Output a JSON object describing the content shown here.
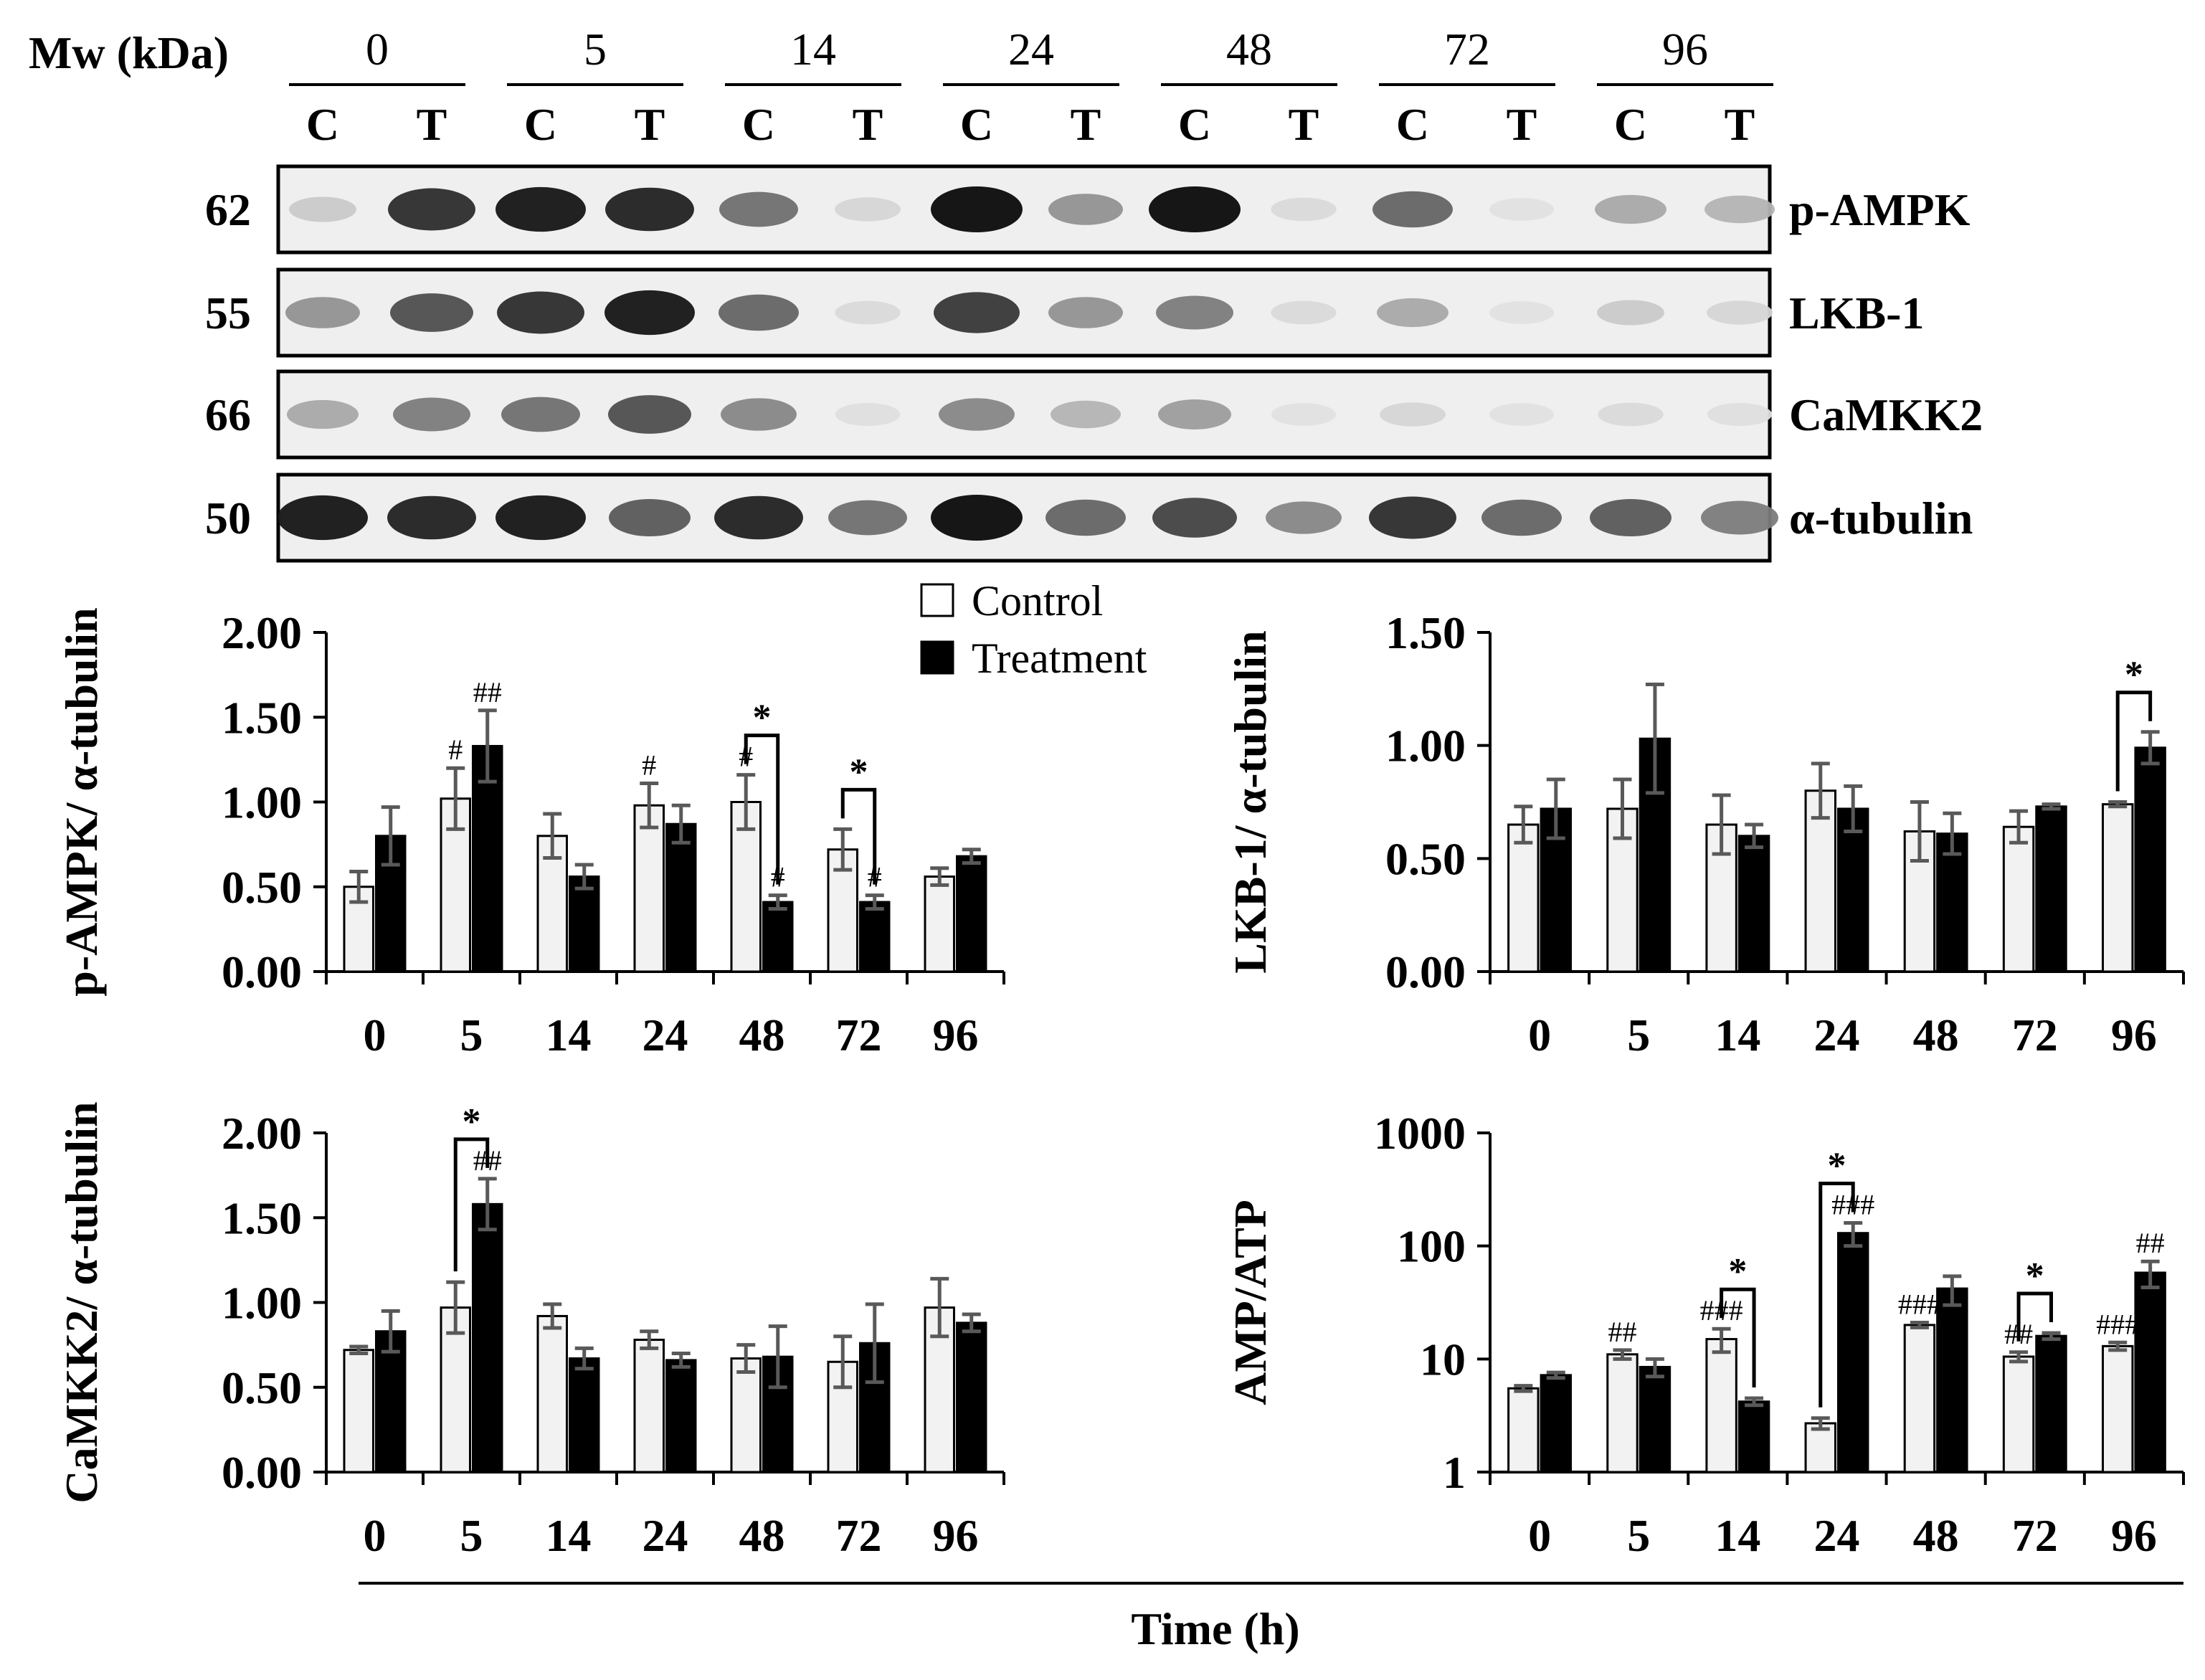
{
  "blot": {
    "mw_label": "Mw (kDa)",
    "time_points": [
      "0",
      "5",
      "14",
      "24",
      "48",
      "72",
      "96"
    ],
    "lane_labels": [
      "C",
      "T",
      "C",
      "T",
      "C",
      "T",
      "C",
      "T",
      "C",
      "T",
      "C",
      "T",
      "C",
      "T"
    ],
    "bands": [
      {
        "mw": "62",
        "name": "p-AMPK",
        "intensity": [
          0.15,
          0.85,
          0.95,
          0.9,
          0.55,
          0.1,
          1.0,
          0.4,
          1.0,
          0.08,
          0.6,
          0.05,
          0.3,
          0.25
        ]
      },
      {
        "mw": "55",
        "name": "LKB-1",
        "intensity": [
          0.4,
          0.7,
          0.85,
          0.95,
          0.6,
          0.08,
          0.8,
          0.4,
          0.5,
          0.08,
          0.3,
          0.05,
          0.15,
          0.1
        ]
      },
      {
        "mw": "66",
        "name": "CaMKK2",
        "intensity": [
          0.3,
          0.5,
          0.55,
          0.7,
          0.45,
          0.06,
          0.45,
          0.25,
          0.35,
          0.05,
          0.1,
          0.05,
          0.08,
          0.06
        ]
      },
      {
        "mw": "50",
        "name": "α-tubulin",
        "intensity": [
          0.95,
          0.9,
          0.95,
          0.65,
          0.9,
          0.55,
          1.0,
          0.6,
          0.75,
          0.45,
          0.85,
          0.6,
          0.65,
          0.5
        ]
      }
    ]
  },
  "legend": {
    "control": "Control",
    "treatment": "Treatment"
  },
  "shared_xlabel": "Time (h)",
  "chart_data": [
    {
      "type": "bar",
      "id": "pampk",
      "ylabel": "p-AMPK/ α-tubulin",
      "categories": [
        "0",
        "5",
        "14",
        "24",
        "48",
        "72",
        "96"
      ],
      "ylim": [
        0,
        2
      ],
      "yticks": [
        "0.00",
        "0.50",
        "1.00",
        "1.50",
        "2.00"
      ],
      "series": [
        {
          "name": "Control",
          "values": [
            0.5,
            1.02,
            0.8,
            0.98,
            1.0,
            0.72,
            0.56
          ],
          "errors": [
            0.09,
            0.18,
            0.13,
            0.13,
            0.16,
            0.12,
            0.05
          ],
          "marks": [
            "",
            "#",
            "",
            "#",
            "#",
            "",
            ""
          ]
        },
        {
          "name": "Treatment",
          "values": [
            0.8,
            1.33,
            0.56,
            0.87,
            0.41,
            0.41,
            0.68
          ],
          "errors": [
            0.17,
            0.21,
            0.07,
            0.11,
            0.04,
            0.04,
            0.04
          ],
          "marks": [
            "",
            "##",
            "",
            "",
            "#",
            "#",
            ""
          ]
        }
      ],
      "significance": [
        {
          "category": "48",
          "label": "*"
        },
        {
          "category": "72",
          "label": "*"
        }
      ]
    },
    {
      "type": "bar",
      "id": "lkb1",
      "ylabel": "LKB-1/ α-tubulin",
      "categories": [
        "0",
        "5",
        "14",
        "24",
        "48",
        "72",
        "96"
      ],
      "ylim": [
        0,
        1.5
      ],
      "yticks": [
        "0.00",
        "0.50",
        "1.00",
        "1.50"
      ],
      "series": [
        {
          "name": "Control",
          "values": [
            0.65,
            0.72,
            0.65,
            0.8,
            0.62,
            0.64,
            0.74
          ],
          "errors": [
            0.08,
            0.13,
            0.13,
            0.12,
            0.13,
            0.07,
            0.01
          ],
          "marks": [
            "",
            "",
            "",
            "",
            "",
            "",
            ""
          ]
        },
        {
          "name": "Treatment",
          "values": [
            0.72,
            1.03,
            0.6,
            0.72,
            0.61,
            0.73,
            0.99
          ],
          "errors": [
            0.13,
            0.24,
            0.05,
            0.1,
            0.09,
            0.01,
            0.07
          ],
          "marks": [
            "",
            "",
            "",
            "",
            "",
            "",
            ""
          ]
        }
      ],
      "significance": [
        {
          "category": "96",
          "label": "*"
        }
      ]
    },
    {
      "type": "bar",
      "id": "camkk2",
      "ylabel": "CaMKK2/ α-tubulin",
      "categories": [
        "0",
        "5",
        "14",
        "24",
        "48",
        "72",
        "96"
      ],
      "ylim": [
        0,
        2
      ],
      "yticks": [
        "0.00",
        "0.50",
        "1.00",
        "1.50",
        "2.00"
      ],
      "series": [
        {
          "name": "Control",
          "values": [
            0.72,
            0.97,
            0.92,
            0.78,
            0.67,
            0.65,
            0.97
          ],
          "errors": [
            0.02,
            0.15,
            0.07,
            0.05,
            0.08,
            0.15,
            0.17
          ],
          "marks": [
            "",
            "",
            "",
            "",
            "",
            "",
            ""
          ]
        },
        {
          "name": "Treatment",
          "values": [
            0.83,
            1.58,
            0.67,
            0.66,
            0.68,
            0.76,
            0.88
          ],
          "errors": [
            0.12,
            0.15,
            0.06,
            0.04,
            0.18,
            0.23,
            0.05
          ],
          "marks": [
            "",
            "##",
            "",
            "",
            "",
            "",
            ""
          ]
        }
      ],
      "significance": [
        {
          "category": "5",
          "label": "*"
        }
      ]
    },
    {
      "type": "bar",
      "id": "ampatp",
      "ylabel": "AMP/ATP",
      "scale": "log",
      "categories": [
        "0",
        "5",
        "14",
        "24",
        "48",
        "72",
        "96"
      ],
      "ylim": [
        1,
        1000
      ],
      "yticks": [
        "1",
        "10",
        "100",
        "1000"
      ],
      "series": [
        {
          "name": "Control",
          "values": [
            5.5,
            11,
            15,
            2.7,
            20,
            10.5,
            13
          ],
          "errors": [
            0.3,
            1,
            3.5,
            0.3,
            1,
            1,
            1
          ],
          "marks": [
            "",
            "##",
            "###",
            "",
            "###",
            "##",
            "###"
          ]
        },
        {
          "name": "Treatment",
          "values": [
            7.2,
            8.5,
            4.2,
            130,
            42,
            16,
            58
          ],
          "errors": [
            0.4,
            1.5,
            0.3,
            30,
            12,
            1,
            15
          ],
          "marks": [
            "",
            "",
            "",
            "###",
            "",
            "",
            "##"
          ]
        }
      ],
      "significance": [
        {
          "category": "14",
          "label": "*"
        },
        {
          "category": "24",
          "label": "*"
        },
        {
          "category": "72",
          "label": "*"
        }
      ]
    }
  ]
}
